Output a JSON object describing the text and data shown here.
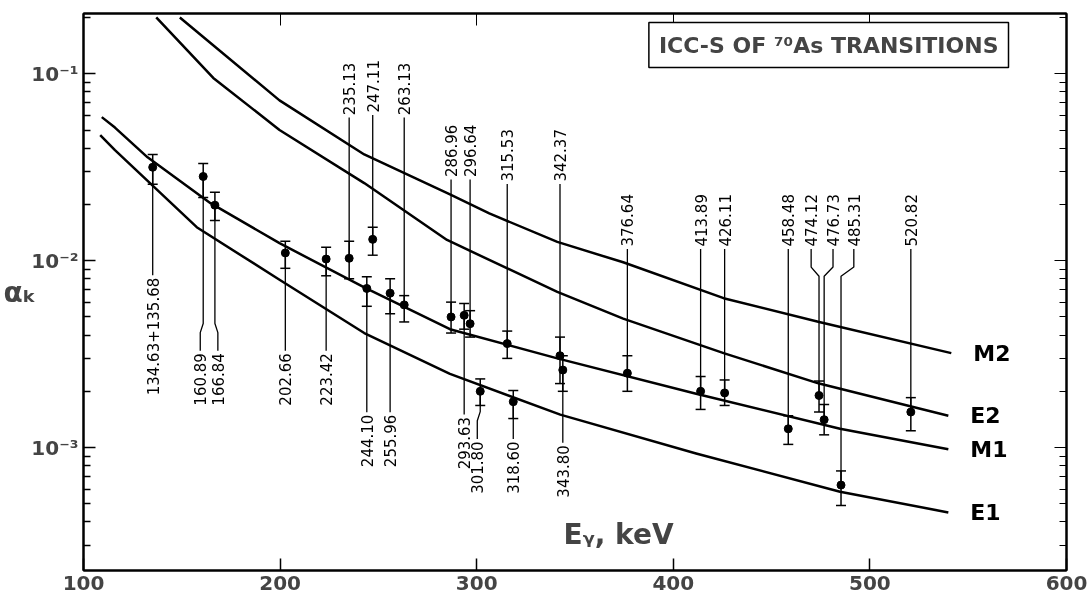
{
  "chart_data": {
    "type": "line",
    "title": "ICC-S OF ⁷⁰As TRANSITIONS",
    "xlabel": "Eᵧ, keV",
    "ylabel": "αₖ",
    "log": "y",
    "grid": false,
    "legend": "right",
    "line_style": "solid",
    "xlim": [
      100,
      600
    ],
    "xticks": [
      100,
      200,
      300,
      400,
      500,
      600
    ],
    "ylim": [
      0.00022,
      0.21
    ],
    "yticks": [
      {
        "value": 0.001,
        "label": "10⁻³"
      },
      {
        "value": 0.01,
        "label": "10⁻²"
      },
      {
        "value": 0.1,
        "label": "10⁻¹"
      },
      {
        "value": 0.0003,
        "label": null
      },
      {
        "value": 0.0004,
        "label": null
      },
      {
        "value": 0.0005,
        "label": null
      },
      {
        "value": 0.0006,
        "label": null
      },
      {
        "value": 0.0007,
        "label": null
      },
      {
        "value": 0.0008,
        "label": null
      },
      {
        "value": 0.0009,
        "label": null
      },
      {
        "value": 0.002,
        "label": null
      },
      {
        "value": 0.003,
        "label": null
      },
      {
        "value": 0.004,
        "label": null
      },
      {
        "value": 0.005,
        "label": null
      },
      {
        "value": 0.006,
        "label": null
      },
      {
        "value": 0.007,
        "label": null
      },
      {
        "value": 0.008,
        "label": null
      },
      {
        "value": 0.009,
        "label": null
      },
      {
        "value": 0.02,
        "label": null
      },
      {
        "value": 0.03,
        "label": null
      },
      {
        "value": 0.04,
        "label": null
      },
      {
        "value": 0.05,
        "label": null
      },
      {
        "value": 0.06,
        "label": null
      },
      {
        "value": 0.07,
        "label": null
      },
      {
        "value": 0.08,
        "label": null
      },
      {
        "value": 0.09,
        "label": null
      },
      {
        "value": 0.2,
        "label": null
      }
    ],
    "series": [
      {
        "name": "M2",
        "color": "#000000",
        "marker": "none",
        "x": [
          149,
          199.7,
          242.8,
          286.4,
          306.4,
          341,
          374.5,
          425.6,
          474.2,
          541.4
        ],
        "values": [
          0.2,
          0.072,
          0.037,
          0.0226,
          0.0179,
          0.0126,
          0.0098,
          0.0063,
          0.0047,
          0.0032
        ]
      },
      {
        "name": "E2",
        "color": "#000000",
        "marker": "none",
        "x": [
          137,
          166,
          199.7,
          242.8,
          284.9,
          341,
          374.5,
          425.6,
          474.2,
          539.9
        ],
        "values": [
          0.2,
          0.095,
          0.05,
          0.026,
          0.0129,
          0.0068,
          0.0049,
          0.0032,
          0.0022,
          0.00148
        ]
      },
      {
        "name": "M1",
        "color": "#000000",
        "marker": "none",
        "x": [
          109.3,
          116,
          132.6,
          164.6,
          199.7,
          242.8,
          286.4,
          341,
          411.6,
          484.8,
          539.9
        ],
        "values": [
          0.0586,
          0.0515,
          0.0357,
          0.0203,
          0.0124,
          0.0072,
          0.0043,
          0.003,
          0.00194,
          0.00126,
          0.00098
        ]
      },
      {
        "name": "E1",
        "color": "#000000",
        "marker": "none",
        "x": [
          108.5,
          116,
          157.6,
          199.7,
          242.8,
          286.4,
          342.5,
          411.6,
          484.8,
          539.9
        ],
        "values": [
          0.047,
          0.039,
          0.0151,
          0.0079,
          0.0041,
          0.00248,
          0.0015,
          0.00093,
          0.00058,
          0.00045
        ]
      },
      {
        "type": "scatter",
        "color": "#000000",
        "marker": "circle",
        "x": [
          135.2,
          160.89,
          166.84,
          202.66,
          223.42,
          235.13,
          244.1,
          247.11,
          255.96,
          263.13,
          286.96,
          293.63,
          296.64,
          301.8,
          315.53,
          318.6,
          342.37,
          343.8,
          376.64,
          413.89,
          426.11,
          458.48,
          474.12,
          476.73,
          485.31,
          520.82
        ],
        "values": [
          0.0316,
          0.0282,
          0.0198,
          0.011,
          0.0102,
          0.0103,
          0.0071,
          0.013,
          0.0067,
          0.0058,
          0.005,
          0.0051,
          0.0046,
          0.002,
          0.0036,
          0.00176,
          0.0031,
          0.0026,
          0.0025,
          0.002,
          0.00196,
          0.00126,
          0.0019,
          0.00141,
          0.00063,
          0.00155
        ],
        "errors": [
          [
            0.0256,
            0.037
          ],
          [
            0.0218,
            0.0331
          ],
          [
            0.0164,
            0.0232
          ],
          [
            0.0091,
            0.0127
          ],
          [
            0.0083,
            0.0118
          ],
          [
            0.008,
            0.0127
          ],
          [
            0.0057,
            0.0082
          ],
          [
            0.0107,
            0.0151
          ],
          [
            0.0052,
            0.008
          ],
          [
            0.0047,
            0.0065
          ],
          [
            0.0041,
            0.006
          ],
          [
            0.0043,
            0.0059
          ],
          [
            0.0039,
            0.0054
          ],
          [
            0.00168,
            0.00233
          ],
          [
            0.003,
            0.0042
          ],
          [
            0.00143,
            0.00202
          ],
          [
            0.0022,
            0.0039
          ],
          [
            0.002,
            0.0031
          ],
          [
            0.002,
            0.0031
          ],
          [
            0.0016,
            0.0024
          ],
          [
            0.00168,
            0.0023
          ],
          [
            0.00104,
            0.00148
          ],
          [
            0.00155,
            0.00227
          ],
          [
            0.00117,
            0.0017
          ],
          [
            0.00049,
            0.00075
          ],
          [
            0.00123,
            0.00185
          ]
        ]
      }
    ],
    "annotations": [
      {
        "text": "134.63+135.68",
        "x": 135.2,
        "y": 0.0316
      },
      {
        "text": "160.89",
        "x": 160.89,
        "y": 0.0282
      },
      {
        "text": "166.84",
        "x": 166.84,
        "y": 0.0198
      },
      {
        "text": "202.66",
        "x": 202.66,
        "y": 0.011
      },
      {
        "text": "223.42",
        "x": 223.42,
        "y": 0.0102
      },
      {
        "text": "235.13",
        "x": 235.13,
        "y": 0.0103
      },
      {
        "text": "244.10",
        "x": 244.1,
        "y": 0.0071
      },
      {
        "text": "247.11",
        "x": 247.11,
        "y": 0.013
      },
      {
        "text": "255.96",
        "x": 255.96,
        "y": 0.0067
      },
      {
        "text": "263.13",
        "x": 263.13,
        "y": 0.0058
      },
      {
        "text": "286.96",
        "x": 286.96,
        "y": 0.005
      },
      {
        "text": "293.63",
        "x": 293.63,
        "y": 0.0051
      },
      {
        "text": "296.64",
        "x": 296.64,
        "y": 0.0046
      },
      {
        "text": "301.80",
        "x": 301.8,
        "y": 0.002
      },
      {
        "text": "315.53",
        "x": 315.53,
        "y": 0.0036
      },
      {
        "text": "318.60",
        "x": 318.6,
        "y": 0.00176
      },
      {
        "text": "342.37",
        "x": 342.37,
        "y": 0.0031
      },
      {
        "text": "343.80",
        "x": 343.8,
        "y": 0.0026
      },
      {
        "text": "376.64",
        "x": 376.64,
        "y": 0.0025
      },
      {
        "text": "413.89",
        "x": 413.89,
        "y": 0.002
      },
      {
        "text": "426.11",
        "x": 426.11,
        "y": 0.00196
      },
      {
        "text": "458.48",
        "x": 458.48,
        "y": 0.00126
      },
      {
        "text": "474.12",
        "x": 474.12,
        "y": 0.0019
      },
      {
        "text": "476.73",
        "x": 476.73,
        "y": 0.00141
      },
      {
        "text": "485.31",
        "x": 485.31,
        "y": 0.00063
      },
      {
        "text": "520.82",
        "x": 520.82,
        "y": 0.00155
      }
    ]
  }
}
